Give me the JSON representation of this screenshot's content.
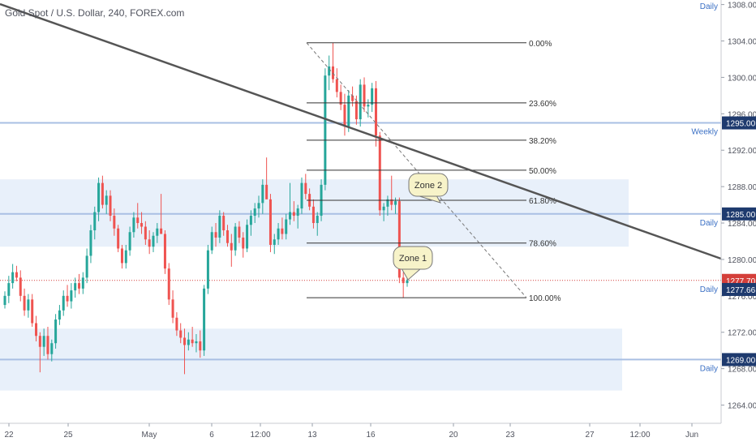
{
  "header": {
    "title": "Gold Spot / U.S. Dollar, 240, FOREX.com"
  },
  "colors": {
    "up": "#26a69a",
    "down": "#ef5350",
    "zone_fill": "#e8f0fa",
    "level_line": "#a9bfe3",
    "level_text": "#3a6fc4",
    "trendline": "#555555",
    "fib": "#333333",
    "current_price": "#d43f3a",
    "axis_text": "#50535e"
  },
  "chart_data": {
    "type": "candlestick",
    "symbol": "XAUUSD",
    "timeframe": "240",
    "y_axis": {
      "ticks": [
        "1264.00",
        "1268.00",
        "1272.00",
        "1276.00",
        "1280.00",
        "1284.00",
        "1288.00",
        "1292.00",
        "1296.00",
        "1300.00",
        "1304.00",
        "1308.00"
      ],
      "range": [
        1262.0,
        1308.5
      ]
    },
    "x_axis": {
      "ticks": [
        "22",
        "25",
        "May",
        "6",
        "12:00",
        "13",
        "16",
        "20",
        "23",
        "27",
        "12:00",
        "Jun"
      ]
    },
    "zones": [
      {
        "top": 1288.8,
        "bottom": 1281.4,
        "line": 1285.0,
        "label": "Daily",
        "price_tag": "1285.00"
      },
      {
        "top": 1272.4,
        "bottom": 1265.6,
        "line": 1269.0,
        "label": "Daily",
        "price_tag": "1269.00"
      }
    ],
    "levels": [
      {
        "price": 1295.0,
        "label": "Weekly",
        "price_tag": "1295.00"
      }
    ],
    "top_labels": {
      "daily": "Daily"
    },
    "current_price": {
      "value": 1277.7,
      "label": "1277.70",
      "secondary_label": "Daily",
      "secondary_tag": "1277.66"
    },
    "fibonacci": [
      {
        "ratio": "0.00%",
        "price": 1303.8
      },
      {
        "ratio": "23.60%",
        "price": 1297.2
      },
      {
        "ratio": "38.20%",
        "price": 1293.1
      },
      {
        "ratio": "50.00%",
        "price": 1289.8
      },
      {
        "ratio": "61.80%",
        "price": 1286.5
      },
      {
        "ratio": "78.60%",
        "price": 1281.8
      },
      {
        "ratio": "100.00%",
        "price": 1275.8
      }
    ],
    "callouts": [
      {
        "text": "Zone 2",
        "near_price": 1286.5
      },
      {
        "text": "Zone 1",
        "near_price": 1277.7
      }
    ],
    "candles": [
      {
        "o": 1275.0,
        "h": 1276.5,
        "l": 1274.6,
        "c": 1276.0
      },
      {
        "o": 1276.0,
        "h": 1278.2,
        "l": 1275.2,
        "c": 1277.4
      },
      {
        "o": 1277.4,
        "h": 1279.5,
        "l": 1276.8,
        "c": 1278.6
      },
      {
        "o": 1278.6,
        "h": 1279.3,
        "l": 1277.6,
        "c": 1278.0
      },
      {
        "o": 1278.0,
        "h": 1278.8,
        "l": 1275.4,
        "c": 1276.0
      },
      {
        "o": 1276.0,
        "h": 1276.8,
        "l": 1273.8,
        "c": 1274.4
      },
      {
        "o": 1274.4,
        "h": 1276.2,
        "l": 1273.6,
        "c": 1275.6
      },
      {
        "o": 1275.6,
        "h": 1276.2,
        "l": 1272.6,
        "c": 1273.0
      },
      {
        "o": 1273.0,
        "h": 1273.8,
        "l": 1271.0,
        "c": 1271.6
      },
      {
        "o": 1271.6,
        "h": 1272.0,
        "l": 1267.6,
        "c": 1270.4
      },
      {
        "o": 1270.4,
        "h": 1272.4,
        "l": 1269.4,
        "c": 1271.6
      },
      {
        "o": 1271.6,
        "h": 1272.6,
        "l": 1269.0,
        "c": 1269.6
      },
      {
        "o": 1269.6,
        "h": 1271.2,
        "l": 1268.8,
        "c": 1270.8
      },
      {
        "o": 1270.8,
        "h": 1274.0,
        "l": 1270.2,
        "c": 1273.4
      },
      {
        "o": 1273.4,
        "h": 1275.0,
        "l": 1272.8,
        "c": 1274.4
      },
      {
        "o": 1274.4,
        "h": 1276.6,
        "l": 1273.8,
        "c": 1276.0
      },
      {
        "o": 1276.0,
        "h": 1277.2,
        "l": 1274.8,
        "c": 1275.4
      },
      {
        "o": 1275.4,
        "h": 1277.4,
        "l": 1274.6,
        "c": 1276.6
      },
      {
        "o": 1276.6,
        "h": 1278.0,
        "l": 1275.8,
        "c": 1277.4
      },
      {
        "o": 1277.4,
        "h": 1278.4,
        "l": 1276.2,
        "c": 1276.8
      },
      {
        "o": 1276.8,
        "h": 1278.6,
        "l": 1276.2,
        "c": 1278.0
      },
      {
        "o": 1278.0,
        "h": 1281.2,
        "l": 1277.4,
        "c": 1280.4
      },
      {
        "o": 1280.4,
        "h": 1283.8,
        "l": 1279.6,
        "c": 1283.2
      },
      {
        "o": 1283.2,
        "h": 1285.8,
        "l": 1282.2,
        "c": 1285.2
      },
      {
        "o": 1285.2,
        "h": 1289.0,
        "l": 1284.2,
        "c": 1288.4
      },
      {
        "o": 1288.4,
        "h": 1289.2,
        "l": 1285.6,
        "c": 1286.0
      },
      {
        "o": 1286.0,
        "h": 1287.6,
        "l": 1285.0,
        "c": 1287.0
      },
      {
        "o": 1287.0,
        "h": 1287.6,
        "l": 1284.2,
        "c": 1284.8
      },
      {
        "o": 1284.8,
        "h": 1285.6,
        "l": 1282.6,
        "c": 1283.4
      },
      {
        "o": 1283.4,
        "h": 1283.8,
        "l": 1280.8,
        "c": 1281.2
      },
      {
        "o": 1281.2,
        "h": 1281.6,
        "l": 1279.0,
        "c": 1279.6
      },
      {
        "o": 1279.6,
        "h": 1281.6,
        "l": 1279.0,
        "c": 1281.0
      },
      {
        "o": 1281.0,
        "h": 1283.6,
        "l": 1280.4,
        "c": 1283.0
      },
      {
        "o": 1283.0,
        "h": 1285.2,
        "l": 1282.4,
        "c": 1284.6
      },
      {
        "o": 1284.6,
        "h": 1286.2,
        "l": 1283.4,
        "c": 1284.0
      },
      {
        "o": 1284.0,
        "h": 1285.2,
        "l": 1282.8,
        "c": 1283.6
      },
      {
        "o": 1283.6,
        "h": 1284.2,
        "l": 1281.6,
        "c": 1282.2
      },
      {
        "o": 1282.2,
        "h": 1283.2,
        "l": 1280.6,
        "c": 1281.4
      },
      {
        "o": 1281.4,
        "h": 1283.0,
        "l": 1280.8,
        "c": 1282.6
      },
      {
        "o": 1282.6,
        "h": 1284.0,
        "l": 1281.8,
        "c": 1283.4
      },
      {
        "o": 1283.4,
        "h": 1287.2,
        "l": 1282.8,
        "c": 1282.8
      },
      {
        "o": 1282.8,
        "h": 1283.2,
        "l": 1278.4,
        "c": 1279.0
      },
      {
        "o": 1279.0,
        "h": 1279.6,
        "l": 1275.0,
        "c": 1275.6
      },
      {
        "o": 1275.6,
        "h": 1276.6,
        "l": 1273.0,
        "c": 1273.6
      },
      {
        "o": 1273.6,
        "h": 1274.2,
        "l": 1271.6,
        "c": 1272.2
      },
      {
        "o": 1272.2,
        "h": 1273.0,
        "l": 1270.8,
        "c": 1271.4
      },
      {
        "o": 1271.4,
        "h": 1272.4,
        "l": 1267.4,
        "c": 1270.6
      },
      {
        "o": 1270.6,
        "h": 1272.0,
        "l": 1270.0,
        "c": 1271.2
      },
      {
        "o": 1271.2,
        "h": 1272.6,
        "l": 1270.4,
        "c": 1270.8
      },
      {
        "o": 1270.8,
        "h": 1271.8,
        "l": 1269.8,
        "c": 1271.0
      },
      {
        "o": 1271.0,
        "h": 1272.2,
        "l": 1269.2,
        "c": 1270.0
      },
      {
        "o": 1270.0,
        "h": 1277.2,
        "l": 1269.4,
        "c": 1276.8
      },
      {
        "o": 1276.8,
        "h": 1281.6,
        "l": 1276.2,
        "c": 1281.0
      },
      {
        "o": 1281.0,
        "h": 1283.6,
        "l": 1280.6,
        "c": 1283.0
      },
      {
        "o": 1283.0,
        "h": 1284.0,
        "l": 1281.4,
        "c": 1282.4
      },
      {
        "o": 1282.4,
        "h": 1285.4,
        "l": 1281.8,
        "c": 1284.8
      },
      {
        "o": 1284.8,
        "h": 1285.2,
        "l": 1282.6,
        "c": 1283.2
      },
      {
        "o": 1283.2,
        "h": 1283.8,
        "l": 1281.4,
        "c": 1281.8
      },
      {
        "o": 1281.8,
        "h": 1282.8,
        "l": 1279.2,
        "c": 1281.0
      },
      {
        "o": 1281.0,
        "h": 1284.0,
        "l": 1280.4,
        "c": 1283.6
      },
      {
        "o": 1283.6,
        "h": 1284.2,
        "l": 1281.8,
        "c": 1282.4
      },
      {
        "o": 1282.4,
        "h": 1283.0,
        "l": 1280.2,
        "c": 1281.2
      },
      {
        "o": 1281.2,
        "h": 1284.4,
        "l": 1280.8,
        "c": 1283.8
      },
      {
        "o": 1283.8,
        "h": 1285.4,
        "l": 1282.6,
        "c": 1284.8
      },
      {
        "o": 1284.8,
        "h": 1286.2,
        "l": 1284.0,
        "c": 1285.6
      },
      {
        "o": 1285.6,
        "h": 1287.0,
        "l": 1284.6,
        "c": 1286.2
      },
      {
        "o": 1286.2,
        "h": 1288.8,
        "l": 1285.0,
        "c": 1288.2
      },
      {
        "o": 1288.2,
        "h": 1291.2,
        "l": 1287.0,
        "c": 1286.6
      },
      {
        "o": 1286.6,
        "h": 1287.2,
        "l": 1280.8,
        "c": 1281.6
      },
      {
        "o": 1281.6,
        "h": 1282.8,
        "l": 1280.6,
        "c": 1282.2
      },
      {
        "o": 1282.2,
        "h": 1284.0,
        "l": 1281.6,
        "c": 1283.4
      },
      {
        "o": 1283.4,
        "h": 1284.6,
        "l": 1282.2,
        "c": 1282.8
      },
      {
        "o": 1282.8,
        "h": 1285.0,
        "l": 1282.2,
        "c": 1284.4
      },
      {
        "o": 1284.4,
        "h": 1288.4,
        "l": 1283.8,
        "c": 1285.2
      },
      {
        "o": 1285.2,
        "h": 1286.4,
        "l": 1284.2,
        "c": 1284.8
      },
      {
        "o": 1284.8,
        "h": 1286.0,
        "l": 1283.4,
        "c": 1285.6
      },
      {
        "o": 1285.6,
        "h": 1289.0,
        "l": 1285.0,
        "c": 1288.4
      },
      {
        "o": 1288.4,
        "h": 1289.4,
        "l": 1286.6,
        "c": 1287.2
      },
      {
        "o": 1287.2,
        "h": 1287.8,
        "l": 1285.4,
        "c": 1285.8
      },
      {
        "o": 1285.8,
        "h": 1286.6,
        "l": 1283.4,
        "c": 1284.0
      },
      {
        "o": 1284.0,
        "h": 1285.2,
        "l": 1282.6,
        "c": 1284.8
      },
      {
        "o": 1284.8,
        "h": 1288.8,
        "l": 1284.2,
        "c": 1288.2
      },
      {
        "o": 1288.2,
        "h": 1301.0,
        "l": 1287.6,
        "c": 1300.2
      },
      {
        "o": 1300.2,
        "h": 1302.4,
        "l": 1298.6,
        "c": 1301.2
      },
      {
        "o": 1301.2,
        "h": 1303.8,
        "l": 1299.4,
        "c": 1299.8
      },
      {
        "o": 1299.8,
        "h": 1301.0,
        "l": 1297.8,
        "c": 1298.4
      },
      {
        "o": 1298.4,
        "h": 1299.2,
        "l": 1296.4,
        "c": 1297.0
      },
      {
        "o": 1297.0,
        "h": 1298.2,
        "l": 1293.6,
        "c": 1294.6
      },
      {
        "o": 1294.6,
        "h": 1298.6,
        "l": 1294.0,
        "c": 1298.0
      },
      {
        "o": 1298.0,
        "h": 1299.0,
        "l": 1296.8,
        "c": 1297.4
      },
      {
        "o": 1297.4,
        "h": 1298.0,
        "l": 1294.8,
        "c": 1295.4
      },
      {
        "o": 1295.4,
        "h": 1299.8,
        "l": 1294.6,
        "c": 1299.2
      },
      {
        "o": 1299.2,
        "h": 1300.0,
        "l": 1296.2,
        "c": 1296.8
      },
      {
        "o": 1296.8,
        "h": 1297.6,
        "l": 1295.6,
        "c": 1297.0
      },
      {
        "o": 1297.0,
        "h": 1299.4,
        "l": 1296.2,
        "c": 1298.8
      },
      {
        "o": 1298.8,
        "h": 1299.6,
        "l": 1292.4,
        "c": 1293.6
      },
      {
        "o": 1293.6,
        "h": 1294.0,
        "l": 1284.8,
        "c": 1285.4
      },
      {
        "o": 1285.4,
        "h": 1286.2,
        "l": 1284.2,
        "c": 1285.8
      },
      {
        "o": 1285.8,
        "h": 1287.0,
        "l": 1284.8,
        "c": 1286.6
      },
      {
        "o": 1286.6,
        "h": 1289.2,
        "l": 1285.4,
        "c": 1286.0
      },
      {
        "o": 1286.0,
        "h": 1286.8,
        "l": 1285.0,
        "c": 1286.4
      },
      {
        "o": 1286.4,
        "h": 1286.8,
        "l": 1277.4,
        "c": 1278.0
      },
      {
        "o": 1278.0,
        "h": 1278.6,
        "l": 1275.8,
        "c": 1277.4
      },
      {
        "o": 1277.4,
        "h": 1278.2,
        "l": 1277.0,
        "c": 1277.7
      }
    ]
  }
}
